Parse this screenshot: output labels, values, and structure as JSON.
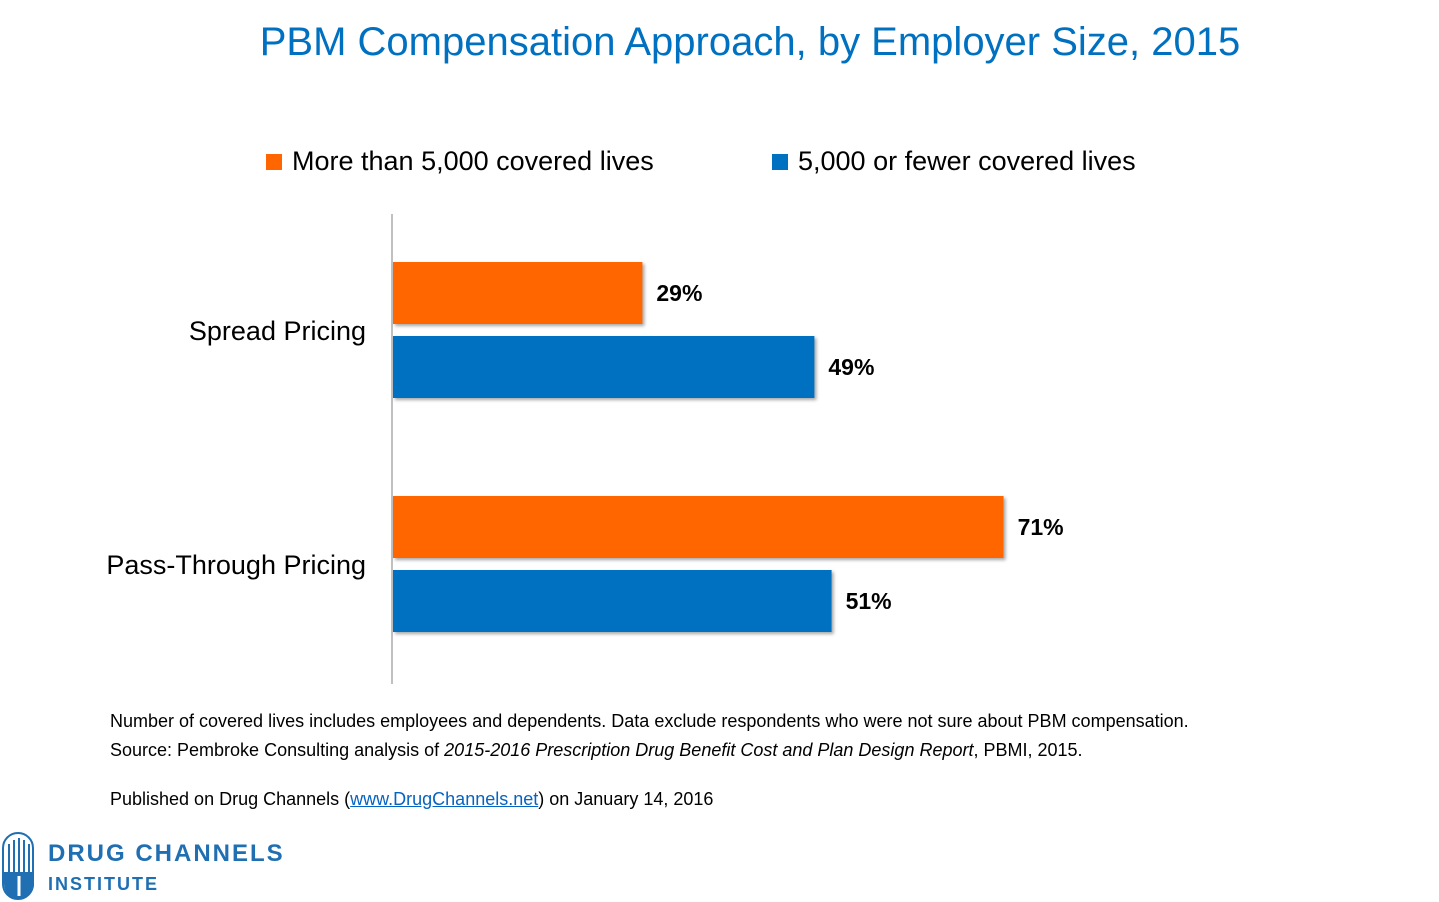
{
  "chart_data": {
    "type": "bar",
    "orientation": "horizontal",
    "title": "PBM Compensation Approach, by Employer Size, 2015",
    "categories": [
      "Spread Pricing",
      "Pass-Through Pricing"
    ],
    "series": [
      {
        "name": "More than 5,000 covered lives",
        "color": "#ff6600",
        "values": [
          29,
          71
        ],
        "labels": [
          "29%",
          "71%"
        ]
      },
      {
        "name": "5,000 or fewer covered lives",
        "color": "#0070c0",
        "values": [
          49,
          51
        ],
        "labels": [
          "49%",
          "51%"
        ]
      }
    ],
    "xlim": [
      0,
      100
    ],
    "grid": false,
    "legend": "top"
  },
  "notes": {
    "line1": "Number of covered lives includes employees and dependents. Data exclude respondents who were not sure about PBM compensation.",
    "line2_prefix": "Source: Pembroke Consulting analysis of ",
    "line2_italic": "2015-2016 Prescription Drug Benefit Cost and Plan Design Report",
    "line2_suffix": ", PBMI, 2015."
  },
  "published": {
    "prefix": "Published on Drug Channels (",
    "link": "www.DrugChannels.net",
    "suffix": ") on January 14, 2016"
  },
  "logo": {
    "line1": "DRUG CHANNELS",
    "line2": "INSTITUTE",
    "color": "#1f6fb2"
  }
}
